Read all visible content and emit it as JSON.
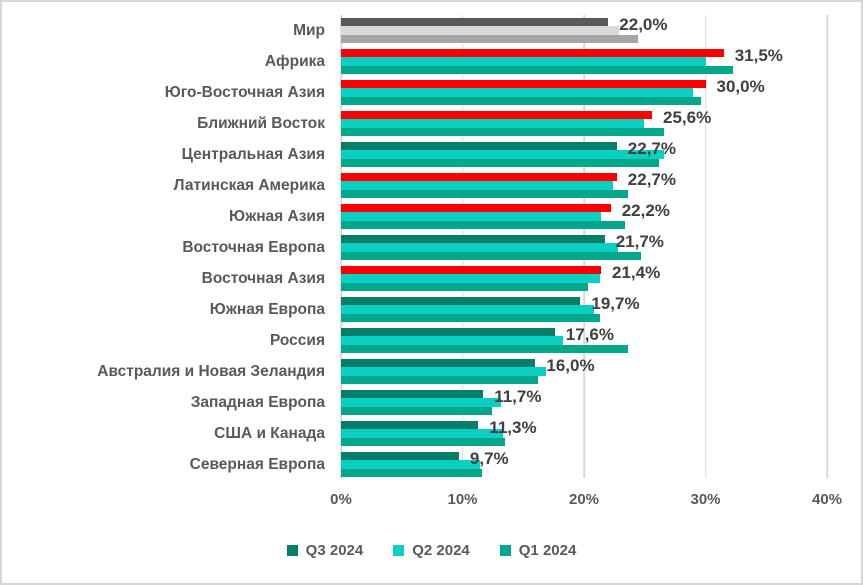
{
  "chart_data": {
    "type": "bar",
    "orientation": "horizontal",
    "title": "",
    "xlabel": "",
    "ylabel": "",
    "xlim": [
      0,
      40
    ],
    "x_ticks": [
      "0%",
      "10%",
      "20%",
      "30%",
      "40%"
    ],
    "value_unit": "%",
    "grid": true,
    "legend_position": "bottom-center",
    "legend": [
      {
        "label": "Q3 2024",
        "color": "#077E68"
      },
      {
        "label": "Q2 2024",
        "color": "#0BCFC1"
      },
      {
        "label": "Q1 2024",
        "color": "#02A78C"
      }
    ],
    "bar_order_note": "bars top-to-bottom within each category: Q3 2024, Q2 2024, Q1 2024; data label shows Q3 2024 value",
    "rows": [
      {
        "category": "Мир",
        "values": {
          "q3_2024": 22.0,
          "q2_2024": 22.9,
          "q1_2024": 24.4
        },
        "data_label": "22,0%",
        "style": "gray"
      },
      {
        "category": "Африка",
        "values": {
          "q3_2024": 31.5,
          "q2_2024": 30.0,
          "q1_2024": 32.3
        },
        "data_label": "31,5%",
        "style": "red"
      },
      {
        "category": "Юго-Восточная Азия",
        "values": {
          "q3_2024": 30.0,
          "q2_2024": 29.0,
          "q1_2024": 29.6
        },
        "data_label": "30,0%",
        "style": "red"
      },
      {
        "category": "Ближний Восток",
        "values": {
          "q3_2024": 25.6,
          "q2_2024": 24.9,
          "q1_2024": 26.6
        },
        "data_label": "25,6%",
        "style": "red"
      },
      {
        "category": "Центральная Азия",
        "values": {
          "q3_2024": 22.7,
          "q2_2024": 26.6,
          "q1_2024": 26.2
        },
        "data_label": "22,7%",
        "style": "green"
      },
      {
        "category": "Латинская Америка",
        "values": {
          "q3_2024": 22.7,
          "q2_2024": 22.4,
          "q1_2024": 23.6
        },
        "data_label": "22,7%",
        "style": "red"
      },
      {
        "category": "Южная Азия",
        "values": {
          "q3_2024": 22.2,
          "q2_2024": 21.4,
          "q1_2024": 23.4
        },
        "data_label": "22,2%",
        "style": "red"
      },
      {
        "category": "Восточная Европа",
        "values": {
          "q3_2024": 21.7,
          "q2_2024": 22.8,
          "q1_2024": 24.7
        },
        "data_label": "21,7%",
        "style": "green"
      },
      {
        "category": "Восточная Азия",
        "values": {
          "q3_2024": 21.4,
          "q2_2024": 21.3,
          "q1_2024": 20.3
        },
        "data_label": "21,4%",
        "style": "red"
      },
      {
        "category": "Южная Европа",
        "values": {
          "q3_2024": 19.7,
          "q2_2024": 20.8,
          "q1_2024": 21.3
        },
        "data_label": "19,7%",
        "style": "green"
      },
      {
        "category": "Россия",
        "values": {
          "q3_2024": 17.6,
          "q2_2024": 18.3,
          "q1_2024": 23.6
        },
        "data_label": "17,6%",
        "style": "green"
      },
      {
        "category": "Австралия и Новая Зеландия",
        "values": {
          "q3_2024": 16.0,
          "q2_2024": 16.9,
          "q1_2024": 16.2
        },
        "data_label": "16,0%",
        "style": "green"
      },
      {
        "category": "Западная Европа",
        "values": {
          "q3_2024": 11.7,
          "q2_2024": 13.2,
          "q1_2024": 12.4
        },
        "data_label": "11,7%",
        "style": "green"
      },
      {
        "category": "США и Канада",
        "values": {
          "q3_2024": 11.3,
          "q2_2024": 13.3,
          "q1_2024": 13.5
        },
        "data_label": "11,3%",
        "style": "green"
      },
      {
        "category": "Северная Европа",
        "values": {
          "q3_2024": 9.7,
          "q2_2024": 11.4,
          "q1_2024": 11.6
        },
        "data_label": "9,7%",
        "style": "green"
      }
    ],
    "colors": {
      "q3_green": "#077E68",
      "q3_red_highlight": "#FB0000",
      "q2_teal": "#0BCFC1",
      "q1_teal": "#02A78C",
      "world_q3_gray": "#595959",
      "world_q2_gray": "#D9D9D9",
      "world_q1_gray": "#A6A6A6",
      "gridline": "#D9D9D9",
      "category_text": "#595959",
      "data_label_text": "#404040",
      "axis_text": "#595959",
      "frame_border": "#D6D6D6"
    }
  }
}
